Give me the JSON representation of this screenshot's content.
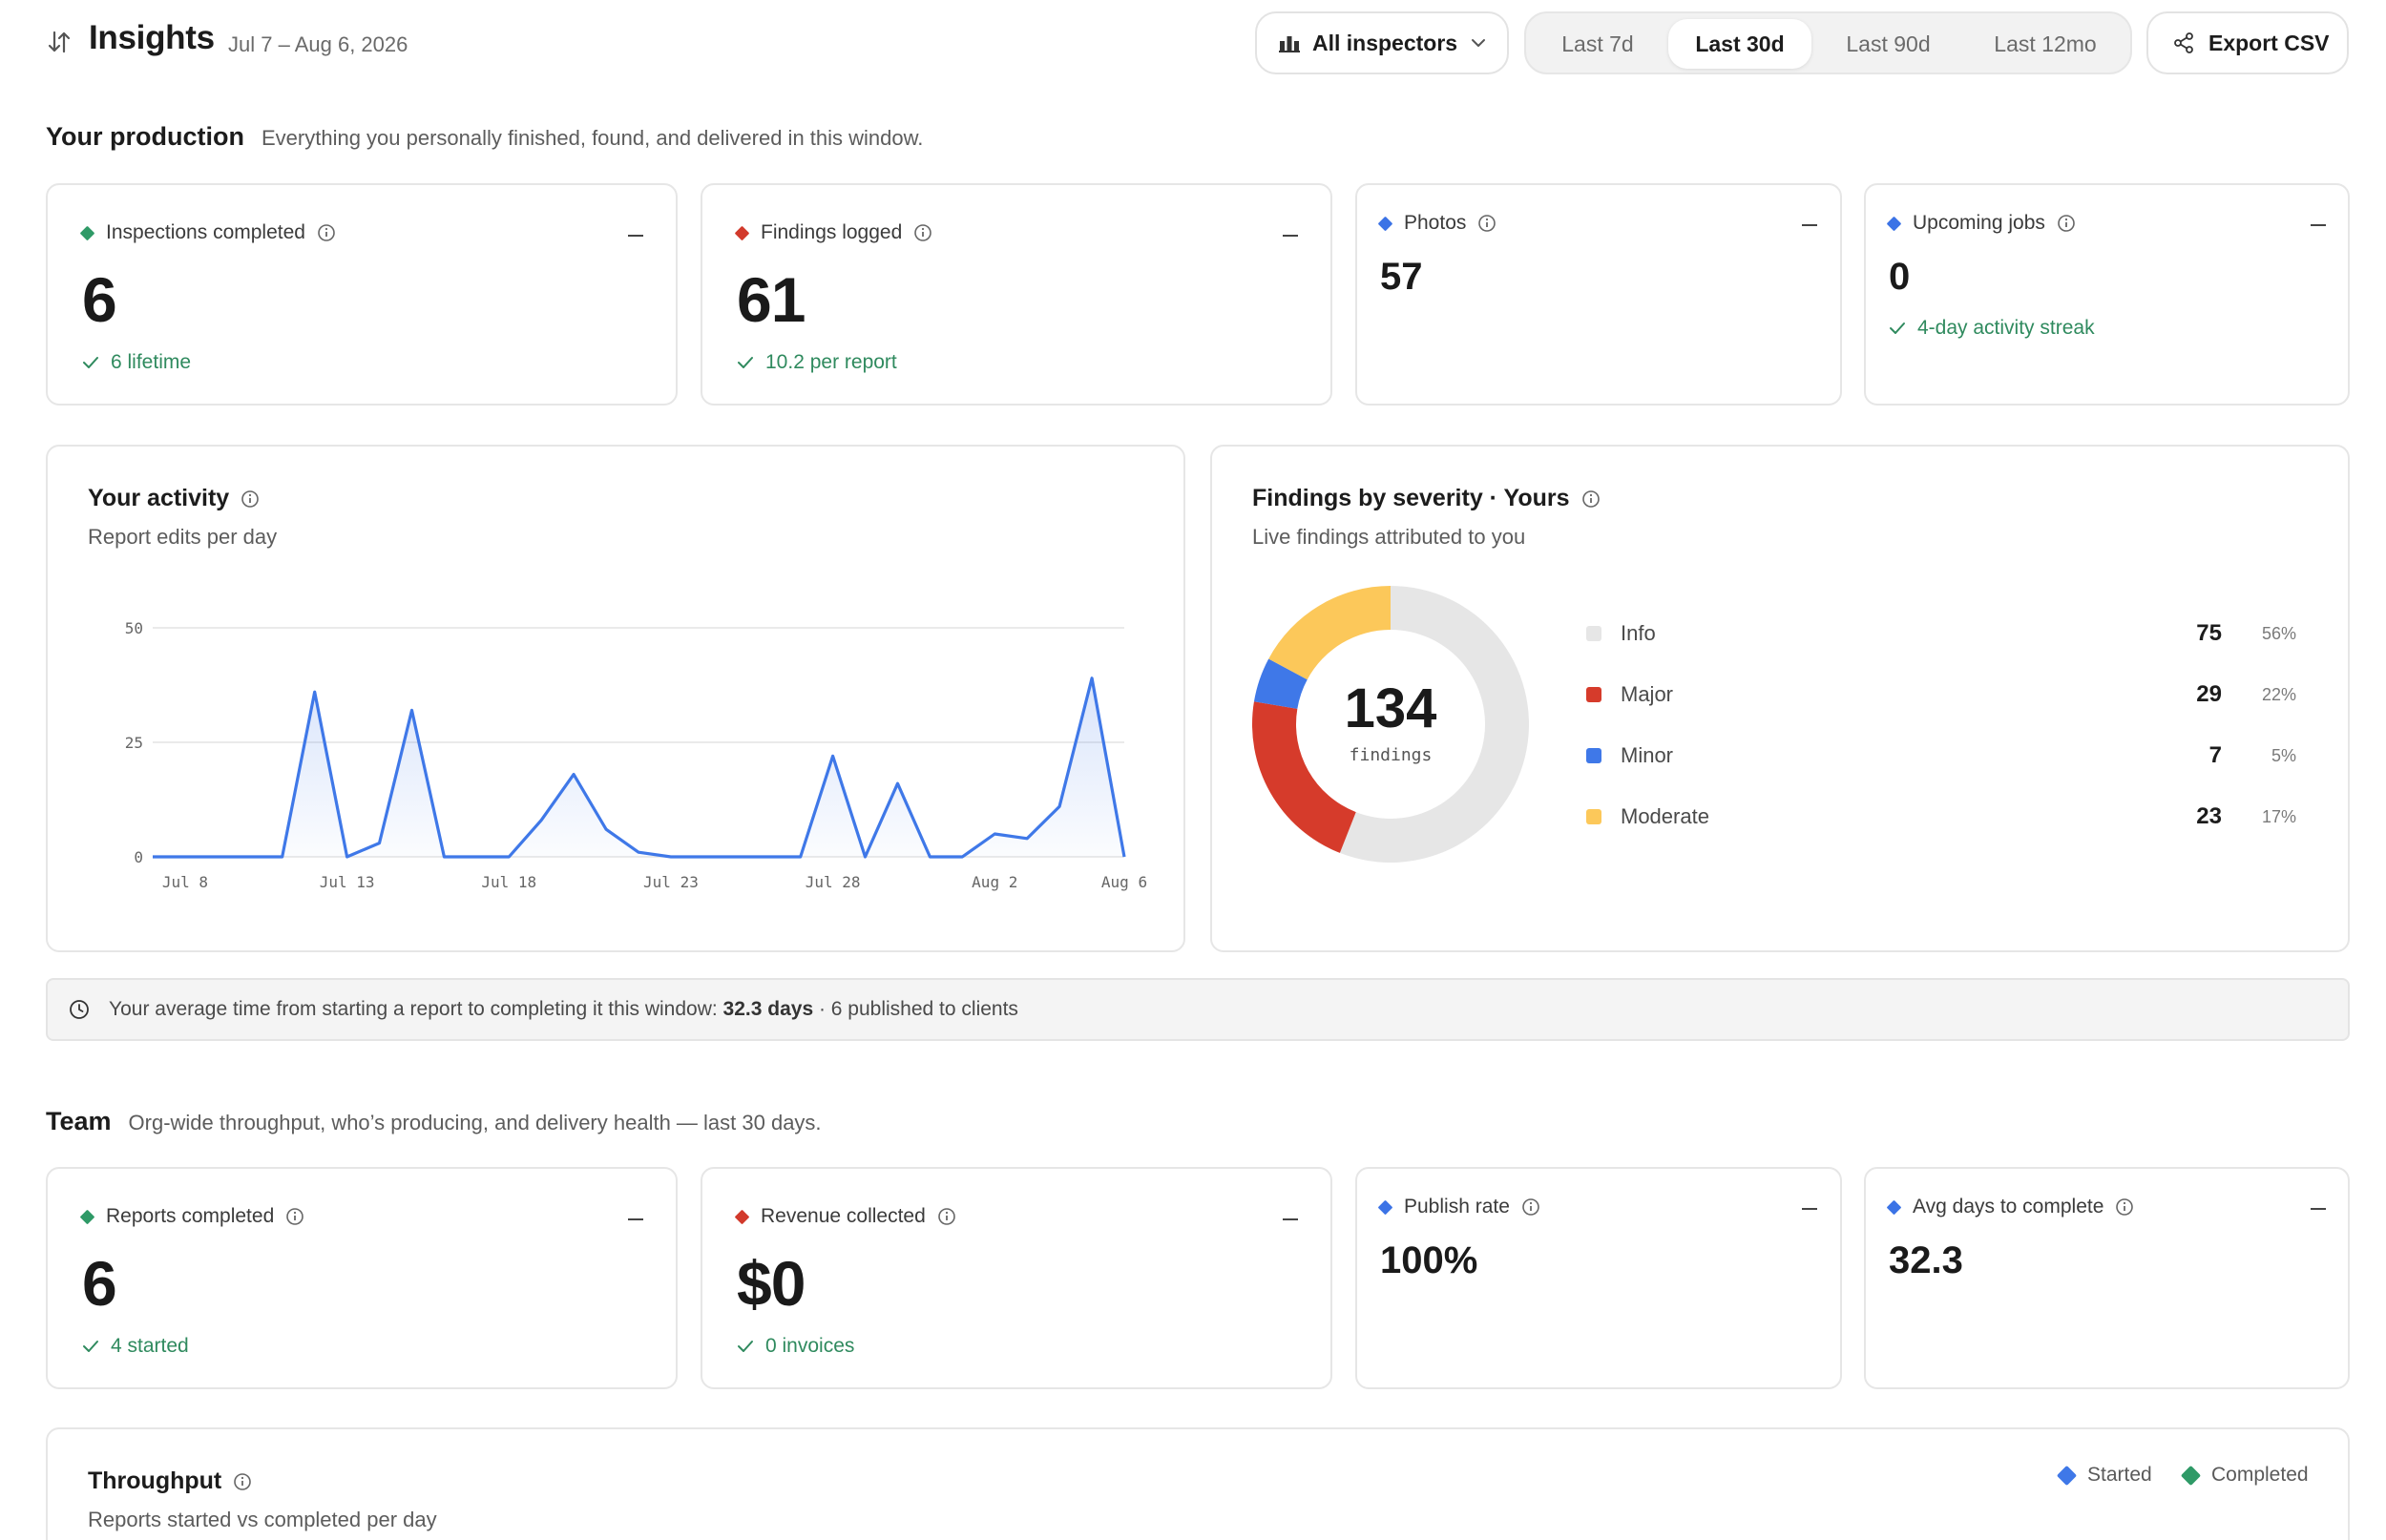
{
  "header": {
    "title": "Insights",
    "date_range": "Jul 7 – Aug 6, 2026",
    "inspector_filter": "All inspectors",
    "ranges": [
      "Last 7d",
      "Last 30d",
      "Last 90d",
      "Last 12mo"
    ],
    "active_range": "Last 30d",
    "export_label": "Export CSV"
  },
  "production": {
    "title": "Your production",
    "description": "Everything you personally finished, found, and delivered in this window.",
    "kpis": [
      {
        "label": "Inspections completed",
        "value": "6",
        "sub": "6 lifetime",
        "color": "#2f9a67"
      },
      {
        "label": "Findings logged",
        "value": "61",
        "sub": "10.2 per report",
        "color": "#d23a2c"
      },
      {
        "label": "Photos",
        "value": "57",
        "sub": "",
        "color": "#3b73e6"
      },
      {
        "label": "Upcoming jobs",
        "value": "0",
        "sub": "4-day activity streak",
        "color": "#3b73e6"
      }
    ]
  },
  "activity": {
    "title": "Your activity",
    "subtitle": "Report edits per day"
  },
  "severity": {
    "title": "Findings by severity · Yours",
    "subtitle": "Live findings attributed to you",
    "total": "134",
    "total_label": "findings",
    "items": [
      {
        "name": "Info",
        "value": "75",
        "pct": "56%",
        "color": "#e6e6e6"
      },
      {
        "name": "Major",
        "value": "29",
        "pct": "22%",
        "color": "#d63b2b"
      },
      {
        "name": "Minor",
        "value": "7",
        "pct": "5%",
        "color": "#3f78e8"
      },
      {
        "name": "Moderate",
        "value": "23",
        "pct": "17%",
        "color": "#fcc85a"
      }
    ]
  },
  "note": {
    "prefix": "Your average time from starting a report to completing it this window:",
    "highlight": "32.3 days",
    "suffix": "· 6 published to clients"
  },
  "team": {
    "title": "Team",
    "description": "Org-wide throughput, who’s producing, and delivery health — last 30 days.",
    "kpis": [
      {
        "label": "Reports completed",
        "value": "6",
        "sub": "4 started",
        "color": "#2f9a67"
      },
      {
        "label": "Revenue collected",
        "value": "$0",
        "sub": "0 invoices",
        "color": "#d23a2c"
      },
      {
        "label": "Publish rate",
        "value": "100%",
        "sub": "",
        "color": "#3b73e6"
      },
      {
        "label": "Avg days to complete",
        "value": "32.3",
        "sub": "",
        "color": "#3b73e6"
      }
    ]
  },
  "throughput": {
    "title": "Throughput",
    "subtitle": "Reports started vs completed per day",
    "legend": [
      {
        "name": "Started",
        "color": "#3f78e8"
      },
      {
        "name": "Completed",
        "color": "#2f9a67"
      }
    ]
  },
  "chart_data": [
    {
      "type": "area",
      "title": "Your activity",
      "subtitle": "Report edits per day",
      "x": [
        "Jul 7",
        "Jul 8",
        "Jul 9",
        "Jul 10",
        "Jul 11",
        "Jul 12",
        "Jul 13",
        "Jul 14",
        "Jul 15",
        "Jul 16",
        "Jul 17",
        "Jul 18",
        "Jul 19",
        "Jul 20",
        "Jul 21",
        "Jul 22",
        "Jul 23",
        "Jul 24",
        "Jul 25",
        "Jul 26",
        "Jul 27",
        "Jul 28",
        "Jul 29",
        "Jul 30",
        "Jul 31",
        "Aug 1",
        "Aug 2",
        "Aug 3",
        "Aug 4",
        "Aug 5",
        "Aug 6"
      ],
      "values": [
        0,
        0,
        0,
        0,
        0,
        36,
        0,
        3,
        32,
        0,
        0,
        0,
        8,
        18,
        6,
        1,
        0,
        0,
        0,
        0,
        0,
        22,
        0,
        16,
        0,
        0,
        5,
        4,
        11,
        39,
        0
      ],
      "x_tick_labels": [
        "Jul 8",
        "Jul 13",
        "Jul 18",
        "Jul 23",
        "Jul 28",
        "Aug 2",
        "Aug 6"
      ],
      "y_ticks": [
        0,
        25,
        50
      ],
      "ylim": [
        0,
        50
      ],
      "grid": true,
      "color": "#3f78e8"
    },
    {
      "type": "pie",
      "title": "Findings by severity · Yours",
      "labels": [
        "Info",
        "Major",
        "Minor",
        "Moderate"
      ],
      "values": [
        75,
        29,
        7,
        23
      ],
      "colors": [
        "#e6e6e6",
        "#d63b2b",
        "#3f78e8",
        "#fcc85a"
      ],
      "center_text": "134 findings"
    }
  ]
}
